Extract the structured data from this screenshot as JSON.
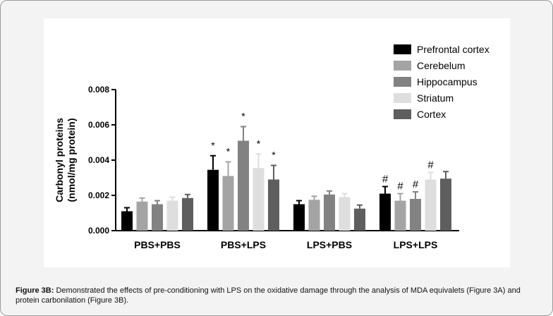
{
  "chart_data": {
    "type": "bar",
    "ylabel_line1": "Carbonyl proteins",
    "ylabel_line2": "(nmol/mg protein)",
    "xlabel": "",
    "ylim": [
      0,
      0.008
    ],
    "yticks": [
      0,
      0.002,
      0.004,
      0.006,
      0.008
    ],
    "ytick_labels": [
      "0.000",
      "0.002",
      "0.004",
      "0.006",
      "0.008"
    ],
    "categories": [
      "PBS+PBS",
      "PBS+LPS",
      "LPS+PBS",
      "LPS+LPS"
    ],
    "series": [
      {
        "name": "Prefrontal cortex",
        "color": "#000000",
        "values": [
          0.0011,
          0.00345,
          0.0015,
          0.0021
        ],
        "errors": [
          0.0002,
          0.0008,
          0.0002,
          0.0004
        ],
        "marks": [
          "",
          "*",
          "",
          "#"
        ]
      },
      {
        "name": "Cerebelum",
        "color": "#a4a4a4",
        "values": [
          0.00165,
          0.0031,
          0.00175,
          0.0017
        ],
        "errors": [
          0.0002,
          0.0008,
          0.0002,
          0.0004
        ],
        "marks": [
          "",
          "*",
          "",
          "#"
        ]
      },
      {
        "name": "Hippocampus",
        "color": "#828282",
        "values": [
          0.0015,
          0.0051,
          0.00205,
          0.0018
        ],
        "errors": [
          0.0002,
          0.0008,
          0.0002,
          0.0004
        ],
        "marks": [
          "",
          "*",
          "",
          "#"
        ]
      },
      {
        "name": "Striatum",
        "color": "#dedede",
        "values": [
          0.0017,
          0.00355,
          0.0019,
          0.0029
        ],
        "errors": [
          0.0002,
          0.0008,
          0.0002,
          0.0004
        ],
        "marks": [
          "",
          "*",
          "",
          "#"
        ]
      },
      {
        "name": "Cortex",
        "color": "#5e5e5e",
        "values": [
          0.00185,
          0.0029,
          0.00125,
          0.00295
        ],
        "errors": [
          0.0002,
          0.0008,
          0.0002,
          0.0004
        ],
        "marks": [
          "",
          "*",
          "",
          ""
        ]
      }
    ],
    "legend_position": "top-right"
  },
  "caption": {
    "label": "Figure 3B:",
    "text": "Demonstrated the effects of pre-conditioning with LPS on the oxidative damage through the analysis of MDA equivalets (Figure 3A) and protein carbonilation (Figure 3B)."
  }
}
